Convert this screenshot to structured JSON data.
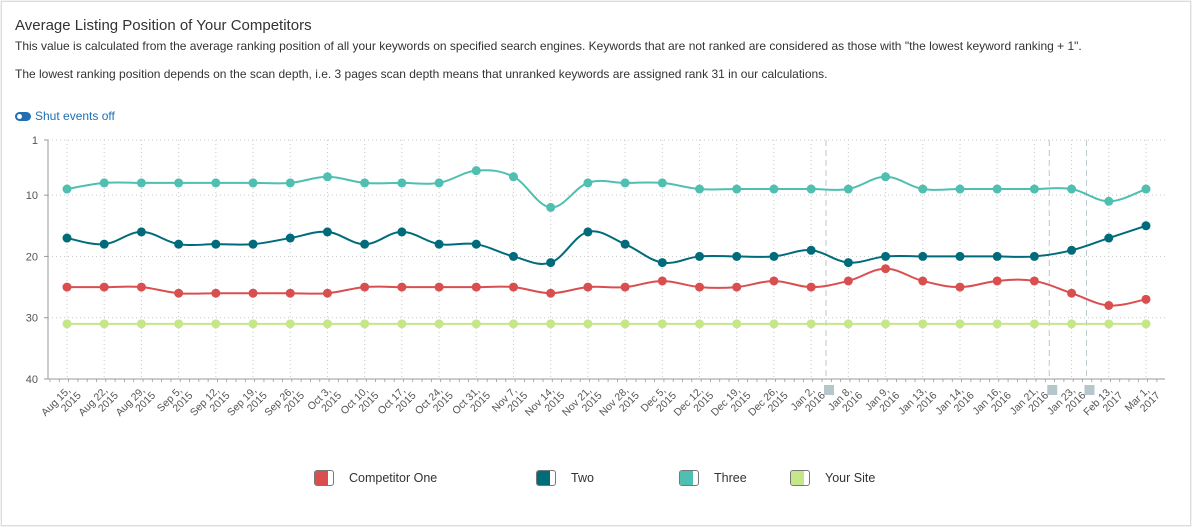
{
  "header": {
    "title": "Average Listing Position of Your Competitors",
    "description1": "This value is calculated from the average ranking position of all your keywords on specified search engines. Keywords that are not ranked are considered as those with \"the lowest keyword ranking + 1\".",
    "description2": "The lowest ranking position depends on the scan depth, i.e. 3 pages scan depth means that unranked keywords are assigned rank 31 in our calculations."
  },
  "toggle": {
    "label": "Shut events off"
  },
  "chart_data": {
    "type": "line",
    "y_reversed": true,
    "ylim": [
      1,
      40
    ],
    "yticks": [
      1,
      10,
      20,
      30,
      40
    ],
    "categories": [
      [
        "Aug 15,",
        "2015"
      ],
      [
        "Aug 22,",
        "2015"
      ],
      [
        "Aug 29,",
        "2015"
      ],
      [
        "Sep 5,",
        "2015"
      ],
      [
        "Sep 12,",
        "2015"
      ],
      [
        "Sep 19,",
        "2015"
      ],
      [
        "Sep 26,",
        "2015"
      ],
      [
        "Oct 3,",
        "2015"
      ],
      [
        "Oct 10,",
        "2015"
      ],
      [
        "Oct 17,",
        "2015"
      ],
      [
        "Oct 24,",
        "2015"
      ],
      [
        "Oct 31,",
        "2015"
      ],
      [
        "Nov 7,",
        "2015"
      ],
      [
        "Nov 14,",
        "2015"
      ],
      [
        "Nov 21,",
        "2015"
      ],
      [
        "Nov 28,",
        "2015"
      ],
      [
        "Dec 5,",
        "2015"
      ],
      [
        "Dec 12,",
        "2015"
      ],
      [
        "Dec 19,",
        "2015"
      ],
      [
        "Dec 26,",
        "2015"
      ],
      [
        "Jan 2,",
        "2016"
      ],
      [
        "Jan 8,",
        "2016"
      ],
      [
        "Jan 9,",
        "2016"
      ],
      [
        "Jan 13,",
        "2016"
      ],
      [
        "Jan 14,",
        "2016"
      ],
      [
        "Jan 16,",
        "2016"
      ],
      [
        "Jan 21,",
        "2016"
      ],
      [
        "Jan 23,",
        "2016"
      ],
      [
        "Feb 13,",
        "2017"
      ],
      [
        "Mar 1,",
        "2017"
      ]
    ],
    "series": [
      {
        "name": "Competitor One",
        "color": "#d94f4f",
        "values": [
          25,
          25,
          25,
          26,
          26,
          26,
          26,
          26,
          25,
          25,
          25,
          25,
          25,
          26,
          25,
          25,
          24,
          25,
          25,
          24,
          25,
          24,
          22,
          24,
          25,
          24,
          24,
          26,
          28,
          27
        ]
      },
      {
        "name": "Two",
        "color": "#006b7a",
        "values": [
          17,
          18,
          16,
          18,
          18,
          18,
          17,
          16,
          18,
          16,
          18,
          18,
          20,
          21,
          16,
          18,
          21,
          20,
          20,
          20,
          19,
          21,
          20,
          20,
          20,
          20,
          20,
          19,
          17,
          15
        ]
      },
      {
        "name": "Three",
        "color": "#4ebfb0",
        "values": [
          9,
          8,
          8,
          8,
          8,
          8,
          8,
          7,
          8,
          8,
          8,
          6,
          7,
          12,
          8,
          8,
          8,
          9,
          9,
          9,
          9,
          9,
          7,
          9,
          9,
          9,
          9,
          9,
          11,
          9
        ]
      },
      {
        "name": "Your Site",
        "color": "#c6e68a",
        "values": [
          31,
          31,
          31,
          31,
          31,
          31,
          31,
          31,
          31,
          31,
          31,
          31,
          31,
          31,
          31,
          31,
          31,
          31,
          31,
          31,
          31,
          31,
          31,
          31,
          31,
          31,
          31,
          31,
          31,
          31
        ]
      }
    ],
    "event_markers": [
      21,
      27,
      28
    ],
    "grid": true,
    "legend_position": "bottom"
  }
}
